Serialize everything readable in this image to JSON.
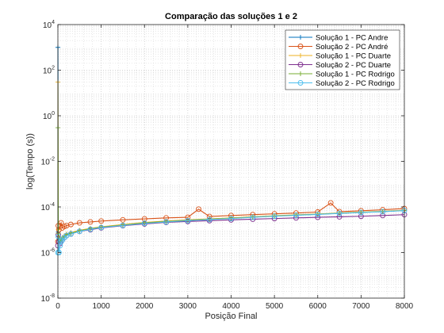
{
  "chart_data": {
    "type": "line",
    "title": "Comparação das soluções 1 e 2",
    "xlabel": "Posição Final",
    "ylabel": "log(Tempo (s))",
    "xlim": [
      0,
      8000
    ],
    "ylim": [
      1e-08,
      10000
    ],
    "yscale": "log",
    "grid": true,
    "minor_grid": true,
    "legend_position": "top-right",
    "x_ticks": [
      0,
      1000,
      2000,
      3000,
      4000,
      5000,
      6000,
      7000,
      8000
    ],
    "x_tick_labels": [
      "0",
      "1000",
      "2000",
      "3000",
      "4000",
      "5000",
      "6000",
      "7000",
      "8000"
    ],
    "y_ticks": [
      1e-08,
      1e-06,
      0.0001,
      0.01,
      1,
      100,
      10000
    ],
    "y_tick_labels": [
      {
        "base": "10",
        "exp": "-8"
      },
      {
        "base": "10",
        "exp": "-6"
      },
      {
        "base": "10",
        "exp": "-4"
      },
      {
        "base": "10",
        "exp": "-2"
      },
      {
        "base": "10",
        "exp": "0"
      },
      {
        "base": "10",
        "exp": "2"
      },
      {
        "base": "10",
        "exp": "4"
      }
    ],
    "series": [
      {
        "name": "Solução 1 - PC Andre",
        "color": "#0072BD",
        "marker": "+",
        "x": [
          1,
          10,
          25,
          50,
          75,
          100,
          150,
          200,
          300,
          500,
          750,
          1000,
          1500,
          2000,
          2500,
          3000,
          3500,
          4000,
          4500,
          5000,
          5500,
          6000,
          6500,
          7000,
          7500,
          8000
        ],
        "y": [
          1000,
          8e-06,
          4e-06,
          3e-06,
          3.5e-06,
          4e-06,
          5e-06,
          6e-06,
          7e-06,
          9e-06,
          1.1e-05,
          1.3e-05,
          1.6e-05,
          2e-05,
          2.3e-05,
          2.6e-05,
          2.9e-05,
          3.2e-05,
          3.6e-05,
          4e-05,
          4.4e-05,
          4.8e-05,
          5.3e-05,
          5.8e-05,
          6.3e-05,
          7e-05
        ]
      },
      {
        "name": "Solução 2 - PC André",
        "color": "#D95319",
        "marker": "o",
        "x": [
          1,
          10,
          25,
          50,
          75,
          100,
          150,
          200,
          300,
          500,
          750,
          1000,
          1500,
          2000,
          2500,
          3000,
          3250,
          3500,
          4000,
          4500,
          5000,
          5500,
          6000,
          6300,
          6500,
          7000,
          7500,
          8000
        ],
        "y": [
          3e-06,
          1.5e-05,
          1e-05,
          1.5e-05,
          2e-05,
          1.2e-05,
          1.4e-05,
          1.5e-05,
          1.7e-05,
          2e-05,
          2.2e-05,
          2.4e-05,
          2.7e-05,
          3e-05,
          3.3e-05,
          3.5e-05,
          8e-05,
          3.8e-05,
          4.2e-05,
          4.6e-05,
          5e-05,
          5.4e-05,
          6e-05,
          0.00015,
          6.2e-05,
          6.8e-05,
          7.5e-05,
          8.5e-05
        ]
      },
      {
        "name": "Solução 1 - PC Duarte",
        "color": "#EDB120",
        "marker": "+",
        "x": [
          1,
          10,
          25,
          50,
          75,
          100,
          150,
          200,
          300,
          500,
          750,
          1000,
          1500,
          2000,
          2500,
          3000,
          3500,
          4000,
          4500,
          5000,
          5500,
          6000,
          6500,
          7000,
          7500,
          8000
        ],
        "y": [
          30,
          1e-05,
          5e-06,
          4e-06,
          4e-06,
          4.5e-06,
          5.5e-06,
          6.5e-06,
          7.5e-06,
          9.5e-06,
          1.15e-05,
          1.35e-05,
          1.7e-05,
          2.1e-05,
          2.4e-05,
          2.7e-05,
          3e-05,
          3.3e-05,
          3.7e-05,
          4.1e-05,
          4.5e-05,
          4.9e-05,
          5.4e-05,
          5.9e-05,
          6.4e-05,
          7.2e-05
        ]
      },
      {
        "name": "Solução 2 - PC Duarte",
        "color": "#7E2F8E",
        "marker": "o",
        "x": [
          1,
          10,
          25,
          50,
          75,
          100,
          150,
          200,
          300,
          500,
          750,
          1000,
          1500,
          2000,
          2500,
          3000,
          3500,
          4000,
          4500,
          5000,
          5500,
          6000,
          6500,
          7000,
          7500,
          8000
        ],
        "y": [
          2e-06,
          6e-06,
          3e-06,
          2.5e-06,
          3e-06,
          3.5e-06,
          4.5e-06,
          5.5e-06,
          6.5e-06,
          8.5e-06,
          1e-05,
          1.2e-05,
          1.5e-05,
          1.8e-05,
          2.1e-05,
          2.3e-05,
          2.5e-05,
          2.7e-05,
          2.9e-05,
          3.1e-05,
          3.3e-05,
          3.5e-05,
          3.7e-05,
          3.9e-05,
          4.2e-05,
          4.6e-05
        ]
      },
      {
        "name": "Solução 1 - PC Rodrigo",
        "color": "#77AC30",
        "marker": "+",
        "x": [
          1,
          10,
          25,
          50,
          75,
          100,
          150,
          200,
          300,
          500,
          750,
          1000,
          1500,
          2000,
          2500,
          3000,
          3500,
          4000,
          4500,
          5000,
          5500,
          6000,
          6500,
          7000,
          7500,
          8000
        ],
        "y": [
          0.3,
          7e-06,
          4e-06,
          3.2e-06,
          3.5e-06,
          4e-06,
          5e-06,
          6e-06,
          7e-06,
          9e-06,
          1.1e-05,
          1.3e-05,
          1.6e-05,
          2e-05,
          2.3e-05,
          2.6e-05,
          2.9e-05,
          3.2e-05,
          3.6e-05,
          4e-05,
          4.4e-05,
          4.8e-05,
          5.3e-05,
          5.8e-05,
          6.3e-05,
          7e-05
        ]
      },
      {
        "name": "Solução 2 - PC Rodrigo",
        "color": "#4DBEEE",
        "marker": "o",
        "x": [
          1,
          10,
          25,
          50,
          75,
          100,
          150,
          200,
          300,
          500,
          750,
          1000,
          1500,
          2000,
          2500,
          3000,
          3500,
          4000,
          4500,
          5000,
          5500,
          6000,
          6500,
          7000,
          7500,
          8000
        ],
        "y": [
          1e-06,
          5e-06,
          1e-06,
          2e-06,
          3e-06,
          3.5e-06,
          4.5e-06,
          5.5e-06,
          6.5e-06,
          8.5e-06,
          1.05e-05,
          1.25e-05,
          1.55e-05,
          1.9e-05,
          2.2e-05,
          2.5e-05,
          2.8e-05,
          3.1e-05,
          3.5e-05,
          3.9e-05,
          4.3e-05,
          4.7e-05,
          5.2e-05,
          5.7e-05,
          6.2e-05,
          6.9e-05
        ]
      }
    ]
  }
}
